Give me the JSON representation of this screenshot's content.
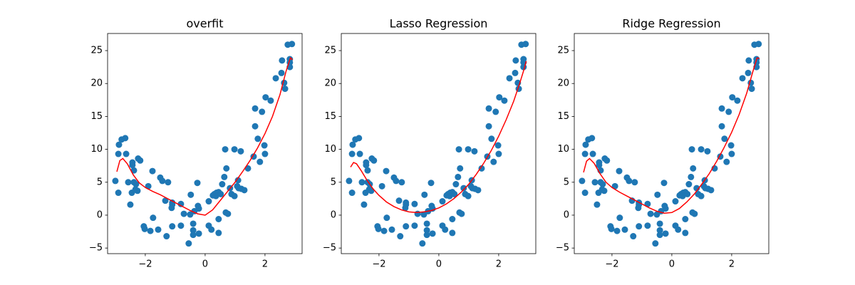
{
  "chart_data": [
    {
      "type": "scatter",
      "title": "overfit",
      "scatter": {
        "color": "#1f77b4",
        "x": [
          -3.0,
          -2.9,
          -2.9,
          -2.88,
          -2.79,
          -2.67,
          -2.64,
          -2.57,
          -2.5,
          -2.45,
          -2.43,
          -2.43,
          -2.38,
          -2.38,
          -2.33,
          -2.31,
          -2.26,
          -2.24,
          -2.17,
          -2.05,
          -2.02,
          -1.9,
          -1.83,
          -1.76,
          -1.74,
          -1.57,
          -1.5,
          -1.43,
          -1.33,
          -1.29,
          -1.24,
          -1.12,
          -1.1,
          -1.1,
          -1.1,
          -0.81,
          -0.81,
          -0.71,
          -0.55,
          -0.5,
          -0.48,
          -0.4,
          -0.4,
          -0.4,
          -0.36,
          -0.26,
          -0.24,
          -0.21,
          -0.21,
          0.12,
          0.12,
          0.21,
          0.26,
          0.31,
          0.36,
          0.38,
          0.45,
          0.45,
          0.45,
          0.52,
          0.57,
          0.64,
          0.67,
          0.69,
          0.71,
          0.76,
          0.83,
          0.88,
          0.98,
          0.98,
          1.07,
          1.1,
          1.12,
          1.19,
          1.21,
          1.31,
          1.43,
          1.62,
          1.67,
          1.67,
          1.76,
          1.83,
          1.9,
          1.98,
          2.0,
          2.02,
          2.19,
          2.36,
          2.55,
          2.57,
          2.64,
          2.67,
          2.76,
          2.83,
          2.83,
          2.83,
          2.9
        ],
        "y": [
          5.2,
          3.4,
          9.3,
          10.7,
          11.5,
          11.7,
          9.3,
          5.0,
          1.6,
          3.4,
          7.6,
          8.0,
          6.8,
          5.0,
          3.9,
          4.7,
          3.7,
          8.6,
          8.3,
          -1.7,
          -2.1,
          4.4,
          -2.4,
          6.7,
          -0.4,
          -2.2,
          5.7,
          5.2,
          2.2,
          -3.2,
          5.0,
          1.1,
          1.9,
          1.6,
          -1.7,
          1.7,
          -1.6,
          0.2,
          -4.3,
          0.1,
          3.1,
          -1.3,
          -2.3,
          -3.0,
          0.6,
          4.9,
          1.4,
          1.0,
          -2.8,
          2.1,
          -1.6,
          -2.2,
          3.0,
          3.2,
          2.9,
          3.4,
          3.5,
          -2.7,
          -0.6,
          3.2,
          4.7,
          5.8,
          10.0,
          0.4,
          7.1,
          0.2,
          4.1,
          3.2,
          10.0,
          2.9,
          4.4,
          5.3,
          4.1,
          9.7,
          4.0,
          3.8,
          7.1,
          8.9,
          16.2,
          13.5,
          11.6,
          8.1,
          15.7,
          10.6,
          9.3,
          17.9,
          17.4,
          20.8,
          21.6,
          23.5,
          20.1,
          19.2,
          25.9,
          23.2,
          23.7,
          22.5,
          26.0
        ]
      },
      "line": {
        "color": "#ff0000",
        "x": [
          -2.95,
          -2.85,
          -2.75,
          -2.6,
          -2.4,
          -2.2,
          -2,
          -1.75,
          -1.5,
          -1.25,
          -1,
          -0.75,
          -0.5,
          -0.25,
          0,
          0.25,
          0.5,
          0.75,
          1,
          1.25,
          1.5,
          1.75,
          2,
          2.25,
          2.5,
          2.7,
          2.85,
          2.92
        ],
        "y": [
          6.6,
          8.3,
          8.6,
          7.8,
          6.1,
          4.9,
          4.2,
          3.6,
          3.1,
          2.5,
          1.9,
          1.3,
          0.7,
          0.2,
          0.0,
          0.8,
          2.2,
          3.6,
          5.0,
          6.6,
          8.3,
          10.2,
          12.4,
          15.0,
          18.3,
          21.8,
          23.9,
          23.6
        ]
      },
      "xlim": [
        -3.26,
        3.24
      ],
      "ylim": [
        -5.85,
        27.6
      ],
      "xticks": [
        {
          "value": -2,
          "label": "−2"
        },
        0,
        2
      ],
      "yticks": [
        {
          "value": -5,
          "label": "−5"
        },
        0,
        5,
        10,
        15,
        20,
        25
      ]
    },
    {
      "type": "scatter",
      "title": "Lasso Regression",
      "scatter": {
        "color": "#1f77b4",
        "x": [
          -3.0,
          -2.9,
          -2.9,
          -2.88,
          -2.79,
          -2.67,
          -2.64,
          -2.57,
          -2.5,
          -2.45,
          -2.43,
          -2.43,
          -2.38,
          -2.38,
          -2.33,
          -2.31,
          -2.26,
          -2.24,
          -2.17,
          -2.05,
          -2.02,
          -1.9,
          -1.83,
          -1.76,
          -1.74,
          -1.57,
          -1.5,
          -1.43,
          -1.33,
          -1.29,
          -1.24,
          -1.12,
          -1.1,
          -1.1,
          -1.1,
          -0.81,
          -0.81,
          -0.71,
          -0.55,
          -0.5,
          -0.48,
          -0.4,
          -0.4,
          -0.4,
          -0.36,
          -0.26,
          -0.24,
          -0.21,
          -0.21,
          0.12,
          0.12,
          0.21,
          0.26,
          0.31,
          0.36,
          0.38,
          0.45,
          0.45,
          0.45,
          0.52,
          0.57,
          0.64,
          0.67,
          0.69,
          0.71,
          0.76,
          0.83,
          0.88,
          0.98,
          0.98,
          1.07,
          1.1,
          1.12,
          1.19,
          1.21,
          1.31,
          1.43,
          1.62,
          1.67,
          1.67,
          1.76,
          1.83,
          1.9,
          1.98,
          2.0,
          2.02,
          2.19,
          2.36,
          2.55,
          2.57,
          2.64,
          2.67,
          2.76,
          2.83,
          2.83,
          2.83,
          2.9
        ],
        "y": [
          5.2,
          3.4,
          9.3,
          10.7,
          11.5,
          11.7,
          9.3,
          5.0,
          1.6,
          3.4,
          7.6,
          8.0,
          6.8,
          5.0,
          3.9,
          4.7,
          3.7,
          8.6,
          8.3,
          -1.7,
          -2.1,
          4.4,
          -2.4,
          6.7,
          -0.4,
          -2.2,
          5.7,
          5.2,
          2.2,
          -3.2,
          5.0,
          1.1,
          1.9,
          1.6,
          -1.7,
          1.7,
          -1.6,
          0.2,
          -4.3,
          0.1,
          3.1,
          -1.3,
          -2.3,
          -3.0,
          0.6,
          4.9,
          1.4,
          1.0,
          -2.8,
          2.1,
          -1.6,
          -2.2,
          3.0,
          3.2,
          2.9,
          3.4,
          3.5,
          -2.7,
          -0.6,
          3.2,
          4.7,
          5.8,
          10.0,
          0.4,
          7.1,
          0.2,
          4.1,
          3.2,
          10.0,
          2.9,
          4.4,
          5.3,
          4.1,
          9.7,
          4.0,
          3.8,
          7.1,
          8.9,
          16.2,
          13.5,
          11.6,
          8.1,
          15.7,
          10.6,
          9.3,
          17.9,
          17.4,
          20.8,
          21.6,
          23.5,
          20.1,
          19.2,
          25.9,
          23.2,
          23.7,
          22.5,
          26.0
        ]
      },
      "line": {
        "color": "#ff0000",
        "x": [
          -2.95,
          -2.85,
          -2.75,
          -2.6,
          -2.4,
          -2.2,
          -2,
          -1.75,
          -1.5,
          -1.25,
          -1,
          -0.75,
          -0.5,
          -0.25,
          0,
          0.25,
          0.5,
          0.75,
          1,
          1.25,
          1.5,
          1.75,
          2,
          2.25,
          2.5,
          2.7,
          2.85,
          2.92
        ],
        "y": [
          7.3,
          8.0,
          7.8,
          6.8,
          5.3,
          4.0,
          3.0,
          2.0,
          1.3,
          0.8,
          0.5,
          0.4,
          0.5,
          0.7,
          1.1,
          1.7,
          2.5,
          3.5,
          4.7,
          6.2,
          7.9,
          9.8,
          12.0,
          14.5,
          17.3,
          20.0,
          22.2,
          23.4
        ]
      },
      "xlim": [
        -3.26,
        3.24
      ],
      "ylim": [
        -5.85,
        27.6
      ],
      "xticks": [
        {
          "value": -2,
          "label": "−2"
        },
        0,
        2
      ],
      "yticks": [
        {
          "value": -5,
          "label": "−5"
        },
        0,
        5,
        10,
        15,
        20,
        25
      ]
    },
    {
      "type": "scatter",
      "title": "Ridge Regression",
      "scatter": {
        "color": "#1f77b4",
        "x": [
          -3.0,
          -2.9,
          -2.9,
          -2.88,
          -2.79,
          -2.67,
          -2.64,
          -2.57,
          -2.5,
          -2.45,
          -2.43,
          -2.43,
          -2.38,
          -2.38,
          -2.33,
          -2.31,
          -2.26,
          -2.24,
          -2.17,
          -2.05,
          -2.02,
          -1.9,
          -1.83,
          -1.76,
          -1.74,
          -1.57,
          -1.5,
          -1.43,
          -1.33,
          -1.29,
          -1.24,
          -1.12,
          -1.1,
          -1.1,
          -1.1,
          -0.81,
          -0.81,
          -0.71,
          -0.55,
          -0.5,
          -0.48,
          -0.4,
          -0.4,
          -0.4,
          -0.36,
          -0.26,
          -0.24,
          -0.21,
          -0.21,
          0.12,
          0.12,
          0.21,
          0.26,
          0.31,
          0.36,
          0.38,
          0.45,
          0.45,
          0.45,
          0.52,
          0.57,
          0.64,
          0.67,
          0.69,
          0.71,
          0.76,
          0.83,
          0.88,
          0.98,
          0.98,
          1.07,
          1.1,
          1.12,
          1.19,
          1.21,
          1.31,
          1.43,
          1.62,
          1.67,
          1.67,
          1.76,
          1.83,
          1.9,
          1.98,
          2.0,
          2.02,
          2.19,
          2.36,
          2.55,
          2.57,
          2.64,
          2.67,
          2.76,
          2.83,
          2.83,
          2.83,
          2.9
        ],
        "y": [
          5.2,
          3.4,
          9.3,
          10.7,
          11.5,
          11.7,
          9.3,
          5.0,
          1.6,
          3.4,
          7.6,
          8.0,
          6.8,
          5.0,
          3.9,
          4.7,
          3.7,
          8.6,
          8.3,
          -1.7,
          -2.1,
          4.4,
          -2.4,
          6.7,
          -0.4,
          -2.2,
          5.7,
          5.2,
          2.2,
          -3.2,
          5.0,
          1.1,
          1.9,
          1.6,
          -1.7,
          1.7,
          -1.6,
          0.2,
          -4.3,
          0.1,
          3.1,
          -1.3,
          -2.3,
          -3.0,
          0.6,
          4.9,
          1.4,
          1.0,
          -2.8,
          2.1,
          -1.6,
          -2.2,
          3.0,
          3.2,
          2.9,
          3.4,
          3.5,
          -2.7,
          -0.6,
          3.2,
          4.7,
          5.8,
          10.0,
          0.4,
          7.1,
          0.2,
          4.1,
          3.2,
          10.0,
          2.9,
          4.4,
          5.3,
          4.1,
          9.7,
          4.0,
          3.8,
          7.1,
          8.9,
          16.2,
          13.5,
          11.6,
          8.1,
          15.7,
          10.6,
          9.3,
          17.9,
          17.4,
          20.8,
          21.6,
          23.5,
          20.1,
          19.2,
          25.9,
          23.2,
          23.7,
          22.5,
          26.0
        ]
      },
      "line": {
        "color": "#ff0000",
        "x": [
          -2.95,
          -2.85,
          -2.75,
          -2.6,
          -2.4,
          -2.2,
          -2,
          -1.75,
          -1.5,
          -1.25,
          -1,
          -0.75,
          -0.5,
          -0.25,
          0,
          0.25,
          0.5,
          0.75,
          1,
          1.25,
          1.5,
          1.75,
          2,
          2.25,
          2.5,
          2.7,
          2.85,
          2.92
        ],
        "y": [
          6.5,
          8.2,
          8.6,
          7.9,
          6.3,
          5.0,
          4.2,
          3.5,
          2.9,
          2.3,
          1.7,
          1.1,
          0.6,
          0.3,
          0.4,
          1.0,
          2.0,
          3.2,
          4.7,
          6.3,
          8.2,
          10.3,
          12.6,
          15.3,
          18.5,
          21.7,
          23.9,
          23.8
        ]
      },
      "xlim": [
        -3.26,
        3.24
      ],
      "ylim": [
        -5.85,
        27.6
      ],
      "xticks": [
        {
          "value": -2,
          "label": "−2"
        },
        0,
        2
      ],
      "yticks": [
        {
          "value": -5,
          "label": "−5"
        },
        0,
        5,
        10,
        15,
        20,
        25
      ]
    }
  ]
}
